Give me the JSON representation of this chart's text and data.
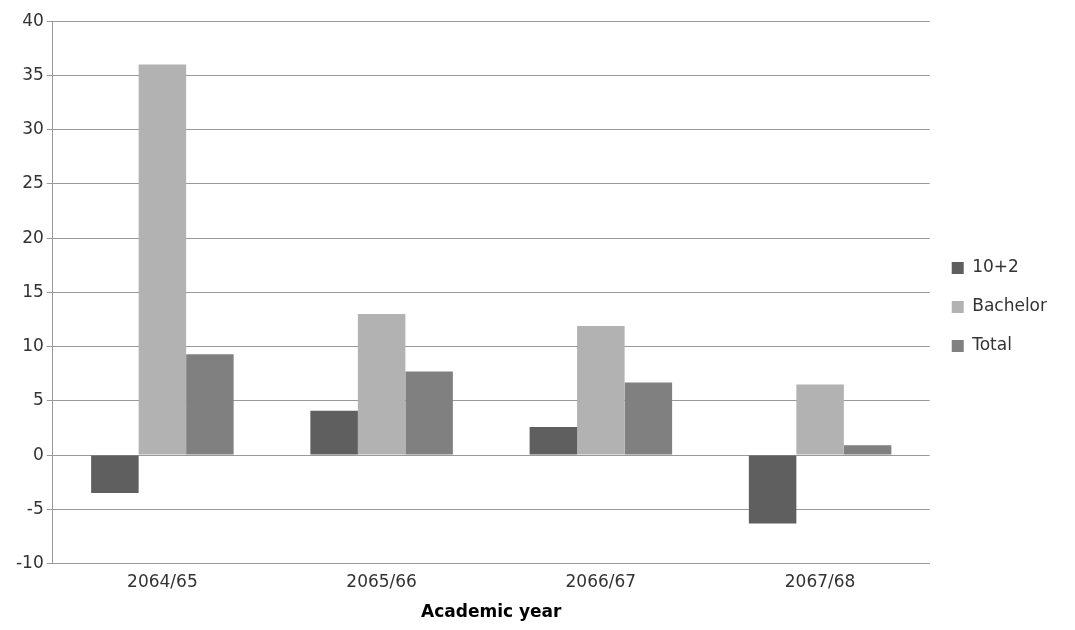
{
  "chart_data": {
    "type": "bar",
    "xlabel": "Academic year",
    "categories": [
      "2064/65",
      "2065/66",
      "2066/67",
      "2067/68"
    ],
    "series": [
      {
        "name": "10+2",
        "color": "#5f5f5f",
        "values": [
          -3.5,
          4.1,
          2.6,
          -6.3
        ]
      },
      {
        "name": "Bachelor",
        "color": "#b2b2b2",
        "values": [
          36,
          13,
          11.9,
          6.5
        ]
      },
      {
        "name": "Total",
        "color": "#808080",
        "values": [
          9.3,
          7.7,
          6.7,
          0.9
        ]
      }
    ],
    "ylim": [
      -10,
      40
    ],
    "yticks": [
      -10,
      -5,
      0,
      5,
      10,
      15,
      20,
      25,
      30,
      35,
      40
    ],
    "grid": "y",
    "legend": "right"
  }
}
